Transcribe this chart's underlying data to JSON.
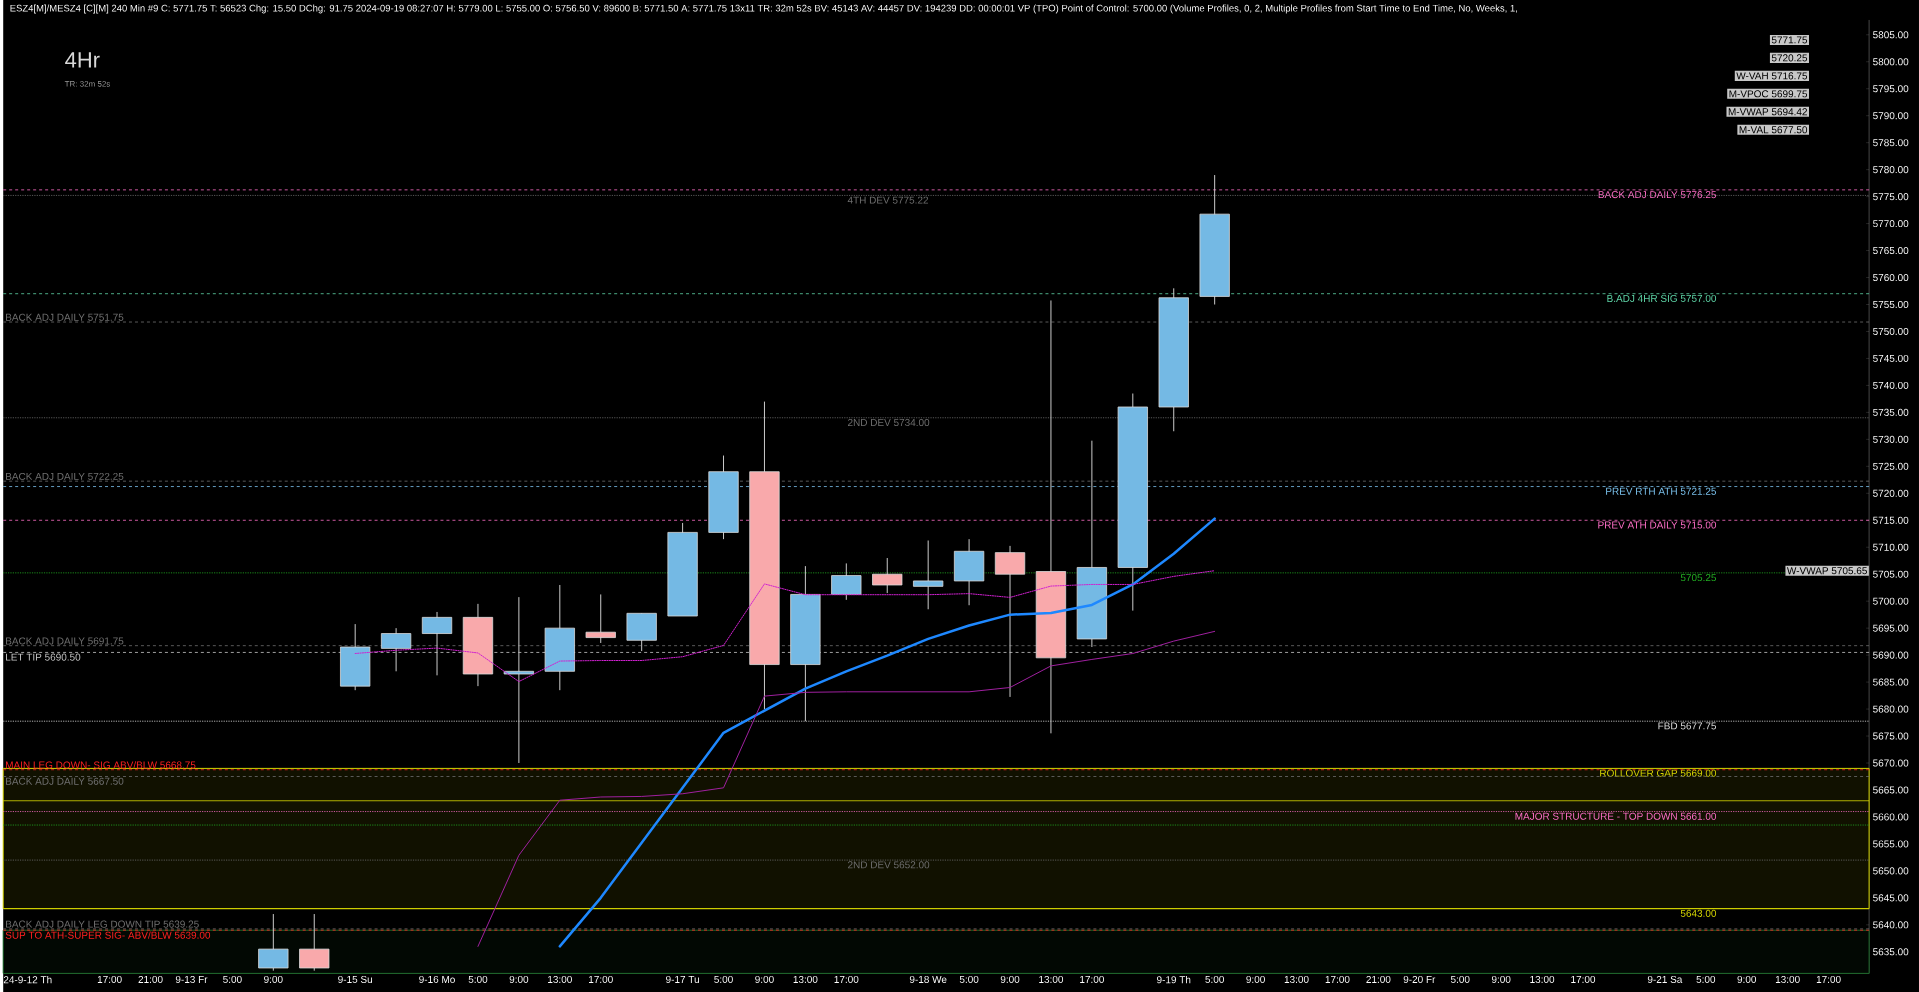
{
  "chart_data": {
    "type": "candlestick",
    "title": "ESZ4[M]/MESZ4 [C][M]  240 Min  #9  C: 5771.75  T: 56523  Chg: 15.50  DChg: 91.75  2024-09-19 08:27:07  H: 5779.00  L: 5755.00  O: 5756.50  V: 89600  B: 5771.50  A: 5771.75  13x11  TR: 32m 52s  BV: 45143  AV: 44457  DV: 194239  DD: 00:00:01  VP (TPO)  Point of Control: 5700.00  (Volume Profiles, 0, 2, Multiple Profiles from Start Time to End Time, No, Weeks, 1,",
    "subtitle": "4Hr",
    "categories": [
      "24-9-12 Th",
      null,
      "17:00",
      "21:00",
      "9-13 Fr",
      "5:00",
      "9:00",
      null,
      "9-15 Su",
      null,
      "9-16 Mo",
      "5:00",
      "9:00",
      "13:00",
      "17:00",
      null,
      "9-17 Tu",
      "5:00",
      "9:00",
      "13:00",
      "17:00",
      null,
      "9-18 We",
      "5:00",
      "9:00",
      "13:00",
      "17:00",
      null,
      "9-19 Th",
      "5:00",
      "9:00",
      "13:00",
      "17:00",
      "21:00",
      "9-20 Fr",
      "5:00",
      "9:00",
      "13:00",
      "17:00",
      null,
      "9-21 Sa",
      "5:00",
      "9:00",
      "13:00",
      "17:00"
    ],
    "ohlc": [
      null,
      null,
      null,
      null,
      null,
      null,
      [
        5632,
        5642,
        5631.5,
        5635.5
      ],
      [
        5635.5,
        5642,
        5631.5,
        5632
      ],
      [
        5684.25,
        5695.75,
        5683.5,
        5691.5
      ],
      [
        5691.25,
        5695,
        5687,
        5694
      ],
      [
        5694,
        5698,
        5686.25,
        5697
      ],
      [
        5697,
        5699.5,
        5684.25,
        5686.5
      ],
      [
        5686.5,
        5700.75,
        5670,
        5687
      ],
      [
        5687,
        5703,
        5683.5,
        5695
      ],
      [
        5694.25,
        5701.25,
        5692.25,
        5693.25
      ],
      [
        5692.75,
        5697.75,
        5690.75,
        5697.75
      ],
      [
        5697.25,
        5714.5,
        5697.25,
        5712.75
      ],
      [
        5712.75,
        5727,
        5711.5,
        5724
      ],
      [
        5724,
        5737,
        5680,
        5688.25
      ],
      [
        5688.25,
        5706.5,
        5677.75,
        5701.25
      ],
      [
        5701.25,
        5707,
        5700.25,
        5704.75
      ],
      [
        5705,
        5708,
        5701.5,
        5703
      ],
      [
        5702.75,
        5711.25,
        5698.5,
        5703.75
      ],
      [
        5703.75,
        5711.5,
        5699.25,
        5709.25
      ],
      [
        5709,
        5710.25,
        5682.25,
        5705
      ],
      [
        5705.5,
        5755.75,
        5675.5,
        5689.5
      ],
      [
        5693,
        5729.75,
        5691.5,
        5706.25
      ],
      [
        5706.25,
        5738.5,
        5698.25,
        5736
      ],
      [
        5736,
        5758,
        5731.5,
        5756.25
      ],
      [
        5756.5,
        5779,
        5755,
        5771.75
      ],
      null,
      null,
      null,
      null,
      null,
      null,
      null,
      null,
      null,
      null,
      null,
      null,
      null,
      null,
      null
    ],
    "colors": [
      null,
      null,
      null,
      null,
      null,
      null,
      "#74b9e4",
      "#f9a9ab",
      "#74b9e4",
      "#74b9e4",
      "#74b9e4",
      "#f9a9ab",
      "#74b9e4",
      "#74b9e4",
      "#f9a9ab",
      "#74b9e4",
      "#74b9e4",
      "#74b9e4",
      "#f9a9ab",
      "#74b9e4",
      "#74b9e4",
      "#f9a9ab",
      "#74b9e4",
      "#74b9e4",
      "#f9a9ab",
      "#f9a9ab",
      "#74b9e4",
      "#74b9e4",
      "#74b9e4",
      "#74b9e4",
      null,
      null,
      null,
      null,
      null,
      null,
      null,
      null,
      null,
      null,
      null,
      null,
      null,
      null,
      null
    ],
    "series": [
      {
        "type": "line",
        "color": "#1e88ff",
        "values": [
          null,
          null,
          null,
          null,
          null,
          null,
          null,
          null,
          null,
          null,
          null,
          null,
          null,
          5636,
          5645,
          5655.2,
          5665.4,
          5675.6,
          5679.7,
          5683.8,
          5687,
          5689.9,
          5693,
          5695.5,
          5697.5,
          5697.8,
          5699.3,
          5703.1,
          5708.8,
          5715.3,
          null,
          null,
          null,
          null,
          null,
          null,
          null,
          null,
          null,
          null,
          null,
          null,
          null,
          null,
          null
        ],
        "line_style": "solid"
      },
      {
        "type": "line",
        "color": "#d020d0",
        "values": [
          null,
          null,
          null,
          null,
          null,
          null,
          null,
          null,
          5690.3,
          5690.9,
          5691.3,
          5690.4,
          5685.1,
          5688.9,
          5689,
          5689,
          5689.7,
          5691.8,
          5703.2,
          5701.2,
          5701.2,
          5701.2,
          5701.2,
          5701.4,
          5700.7,
          5702.8,
          5703.1,
          5703.1,
          5704.6,
          5705.65,
          null,
          null,
          null,
          null,
          null,
          null,
          null,
          null,
          null,
          null,
          null,
          null,
          null,
          null,
          null
        ],
        "line_style": "dotted"
      },
      {
        "type": "line",
        "color": "#a020a0",
        "values": [
          null,
          null,
          null,
          null,
          null,
          null,
          null,
          null,
          null,
          null,
          null,
          5636,
          5652.9,
          5663.1,
          5663.7,
          5663.8,
          5664.3,
          5665.4,
          5682.4,
          5683.1,
          5683.2,
          5683.2,
          5683.2,
          5683.2,
          5684,
          5688,
          5689.2,
          5690.3,
          5692.6,
          5694.4,
          null,
          null,
          null,
          null,
          null,
          null,
          null,
          null,
          null,
          null,
          null,
          null,
          null,
          null,
          null
        ],
        "line_style": "solid"
      }
    ],
    "ylim": [
      5631,
      5807.75
    ],
    "yticks": [
      {
        "value": 5635,
        "label": "5635.00"
      },
      {
        "value": 5640,
        "label": "5640.00"
      },
      {
        "value": 5645,
        "label": "5645.00"
      },
      {
        "value": 5650,
        "label": "5650.00"
      },
      {
        "value": 5655,
        "label": "5655.00"
      },
      {
        "value": 5660,
        "label": "5660.00"
      },
      {
        "value": 5665,
        "label": "5665.00"
      },
      {
        "value": 5670,
        "label": "5670.00"
      },
      {
        "value": 5675,
        "label": "5675.00"
      },
      {
        "value": 5680,
        "label": "5680.00"
      },
      {
        "value": 5685,
        "label": "5685.00"
      },
      {
        "value": 5690,
        "label": "5690.00"
      },
      {
        "value": 5695,
        "label": "5695.00"
      },
      {
        "value": 5700,
        "label": "5700.00"
      },
      {
        "value": 5705,
        "label": "5705.00"
      },
      {
        "value": 5710,
        "label": "5710.00"
      },
      {
        "value": 5715,
        "label": "5715.00"
      },
      {
        "value": 5720,
        "label": "5720.00"
      },
      {
        "value": 5725,
        "label": "5725.00"
      },
      {
        "value": 5730,
        "label": "5730.00"
      },
      {
        "value": 5735,
        "label": "5735.00"
      },
      {
        "value": 5740,
        "label": "5740.00"
      },
      {
        "value": 5745,
        "label": "5745.00"
      },
      {
        "value": 5750,
        "label": "5750.00"
      },
      {
        "value": 5755,
        "label": "5755.00"
      },
      {
        "value": 5760,
        "label": "5760.00"
      },
      {
        "value": 5765,
        "label": "5765.00"
      },
      {
        "value": 5770,
        "label": "5770.00"
      },
      {
        "value": 5775,
        "label": "5775.00"
      },
      {
        "value": 5780,
        "label": "5780.00"
      },
      {
        "value": 5785,
        "label": "5785.00"
      },
      {
        "value": 5790,
        "label": "5790.00"
      },
      {
        "value": 5795,
        "label": "5795.00"
      },
      {
        "value": 5800,
        "label": "5800.00"
      },
      {
        "value": 5805,
        "label": "5805.00"
      }
    ],
    "ref_lines": [
      {
        "axis": "y",
        "value": 5776.25,
        "label": "BACK ADJ DAILY  5776.25",
        "color": "#ff6fc8",
        "line_style": "dashed"
      },
      {
        "axis": "y",
        "value": 5775.22,
        "label": "4TH DEV  5775.22",
        "color": "#6e6e6e",
        "line_style": "dotted"
      },
      {
        "axis": "y",
        "value": 5757,
        "label": "B.ADJ 4HR SIG  5757.00",
        "color": "#5fd6a8",
        "line_style": "dashed"
      },
      {
        "axis": "y",
        "value": 5751.75,
        "label": "BACK ADJ DAILY  5751.75",
        "color": "#707070",
        "line_style": "dashed"
      },
      {
        "axis": "y",
        "value": 5734,
        "label": "2ND DEV  5734.00",
        "color": "#6e6e6e",
        "line_style": "dotted"
      },
      {
        "axis": "y",
        "value": 5722.25,
        "label": "BACK ADJ DAILY  5722.25",
        "color": "#707070",
        "line_style": "dashed"
      },
      {
        "axis": "y",
        "value": 5721.25,
        "label": "PREV RTH ATH  5721.25",
        "color": "#7cc4f0",
        "line_style": "dashed"
      },
      {
        "axis": "y",
        "value": 5715,
        "label": "PREV ATH DAILY  5715.00",
        "color": "#ff6fc8",
        "line_style": "dashed"
      },
      {
        "axis": "y",
        "value": 5705.25,
        "label": "5705.25",
        "color": "#22b022",
        "line_style": "dotted"
      },
      {
        "axis": "y",
        "value": 5691.75,
        "label": "BACK ADJ DAILY  5691.75",
        "color": "#707070",
        "line_style": "dashed"
      },
      {
        "axis": "y",
        "value": 5690.5,
        "label": "LET TIP  5690.50",
        "color": "#c8c8c8",
        "line_style": "dashed"
      },
      {
        "axis": "y",
        "value": 5677.75,
        "label": "FBD  5677.75",
        "color": "#e0e0e0",
        "line_style": "dotted"
      },
      {
        "axis": "y",
        "value": 5668.75,
        "label": "MAIN LEG DOWN- SIG ABV/BLW  5668.75",
        "color": "#ff2020",
        "line_style": "dashed"
      },
      {
        "axis": "y",
        "value": 5667.5,
        "label": "BACK ADJ DAILY  5667.50",
        "color": "#707070",
        "line_style": "dashed"
      },
      {
        "axis": "y",
        "value": 5663,
        "color": "#d8d800",
        "line_style": "solid"
      },
      {
        "axis": "y",
        "value": 5661,
        "label": "MAJOR STRUCTURE - TOP DOWN  5661.00",
        "color": "#ff6fc8",
        "line_style": "dotted"
      },
      {
        "axis": "y",
        "value": 5658.5,
        "color": "#22b022",
        "line_style": "dotted"
      },
      {
        "axis": "y",
        "value": 5652,
        "label": "2ND DEV  5652.00",
        "color": "#6e6e6e",
        "line_style": "dotted"
      },
      {
        "axis": "y",
        "value": 5643,
        "label": "5643.00",
        "color": "#d8d800",
        "line_style": "solid"
      },
      {
        "axis": "y",
        "value": 5639.25,
        "label": "BACK ADJ DAILY LEG DOWN TIP  5639.25",
        "color": "#707070",
        "line_style": "dashed"
      },
      {
        "axis": "y",
        "value": 5639,
        "label": "SUP TO ATH-SUPER SIG- ABV/BLW  5639.00",
        "color": "#ff2020",
        "line_style": "dashed"
      }
    ],
    "bands": [
      {
        "axis": "y",
        "from": 5643,
        "to": 5669,
        "label": "ROLLOVER GAP  5669.00",
        "color": "#d8d800"
      },
      {
        "axis": "y",
        "from": 5631,
        "to": 5639,
        "color": "#1c6a2a"
      }
    ],
    "annotations": [
      "TR: 32m 52s",
      "5771.75",
      "5720.25",
      "W-VAH  5716.75",
      {
        "text": "W-VWAP  5705.65",
        "y": 5705.65
      },
      "M-VPOC  5699.75",
      "M-VWAP  5694.42",
      "M-VAL  5677.50"
    ]
  }
}
